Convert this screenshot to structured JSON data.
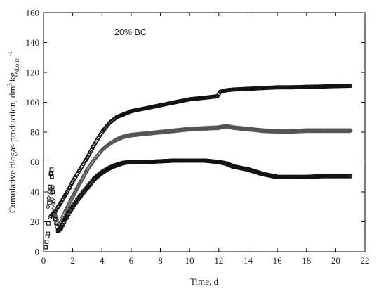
{
  "chart_data": {
    "type": "scatter",
    "xlabel": "Time, d",
    "ylabel_main": "Cumulative biogas production, dm",
    "ylabel_sup": "3",
    "ylabel_kg": "kg",
    "ylabel_sub": "d.o.m",
    "ylabel_exp": "-1",
    "annotation": "20% BC",
    "xlim": [
      0,
      22
    ],
    "ylim": [
      0,
      160
    ],
    "xticks": [
      0,
      2,
      4,
      6,
      8,
      10,
      12,
      14,
      16,
      18,
      20,
      22
    ],
    "yticks": [
      0,
      20,
      40,
      60,
      80,
      100,
      120,
      140,
      160
    ],
    "grid": false,
    "colors": {
      "series_a": "#111111",
      "series_b": "#555555",
      "series_c": "#111111",
      "axis": "#000000"
    },
    "series": [
      {
        "marker": "circle",
        "color": "#111111",
        "x": [
          0.45,
          0.6,
          0.8,
          1.0,
          1.2,
          1.5,
          1.8,
          2.0,
          2.5,
          3.0,
          3.5,
          4.0,
          4.5,
          5.0,
          5.5,
          6.0,
          7.0,
          8.0,
          9.0,
          10.0,
          11.0,
          11.9,
          12.1,
          12.5,
          13.0,
          14.0,
          15.0,
          16.0,
          17.0,
          18.0,
          19.0,
          20.0,
          21.0
        ],
        "y": [
          23,
          25,
          27,
          30,
          33,
          38,
          43,
          47,
          55,
          63,
          72,
          80,
          86,
          90,
          92,
          94,
          96,
          98,
          100,
          102,
          103,
          104,
          107,
          108,
          108.5,
          109,
          109.5,
          110,
          110,
          110.3,
          110.5,
          110.8,
          111
        ]
      },
      {
        "marker": "diamond",
        "color": "#555555",
        "x": [
          0.3,
          0.4,
          0.5,
          0.6,
          0.8,
          1.0,
          1.2,
          1.5,
          2.0,
          2.5,
          3.0,
          3.5,
          4.0,
          4.5,
          5.0,
          5.5,
          6.0,
          7.0,
          8.0,
          9.0,
          10.0,
          11.0,
          12.0,
          12.5,
          13.0,
          14.0,
          15.0,
          16.0,
          17.0,
          18.0,
          19.0,
          20.0,
          21.0
        ],
        "y": [
          30,
          40,
          42,
          35,
          25,
          18,
          20,
          27,
          37,
          46,
          55,
          62,
          68,
          72,
          75,
          77,
          78,
          79,
          80,
          81,
          82,
          82.5,
          83,
          84,
          83,
          82,
          81,
          80.5,
          80.5,
          81,
          81,
          81,
          81
        ]
      },
      {
        "marker": "square",
        "color": "#111111",
        "x": [
          0.15,
          0.3,
          0.4,
          0.5,
          0.55,
          0.6,
          0.8,
          1.0,
          1.2,
          1.5,
          2.0,
          2.5,
          3.0,
          3.5,
          4.0,
          4.5,
          5.0,
          5.5,
          6.0,
          7.0,
          8.0,
          9.0,
          10.0,
          11.0,
          12.0,
          12.5,
          13.0,
          14.0,
          15.0,
          16.0,
          17.0,
          18.0,
          19.0,
          20.0,
          21.0
        ],
        "y": [
          3,
          12,
          35,
          52,
          55,
          43,
          22,
          14,
          16,
          22,
          30,
          37,
          43,
          49,
          53,
          56,
          58,
          59.5,
          60,
          60,
          60.5,
          61,
          61,
          61,
          60,
          59,
          57,
          55,
          52,
          50,
          50,
          50,
          50.5,
          50.5,
          50.5
        ]
      }
    ]
  }
}
